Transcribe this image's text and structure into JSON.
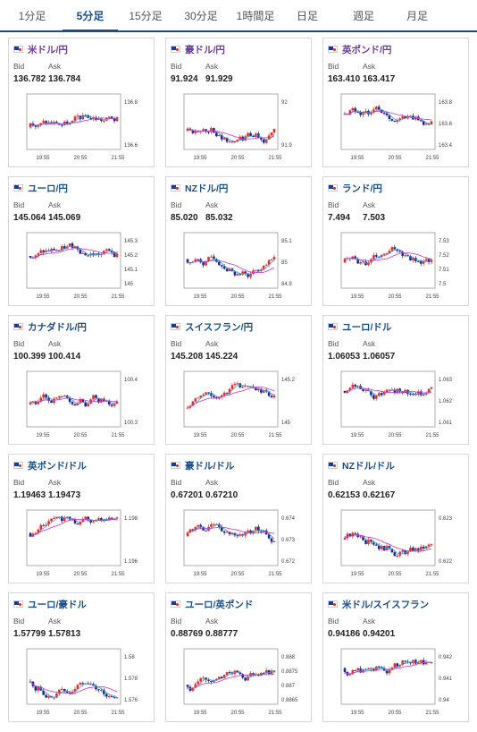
{
  "tabs": [
    {
      "label": "1分足",
      "active": false
    },
    {
      "label": "5分足",
      "active": true
    },
    {
      "label": "15分足",
      "active": false
    },
    {
      "label": "30分足",
      "active": false
    },
    {
      "label": "1時間足",
      "active": false
    },
    {
      "label": "日足",
      "active": false
    },
    {
      "label": "週足",
      "active": false
    },
    {
      "label": "月足",
      "active": false
    }
  ],
  "bid_label": "Bid",
  "ask_label": "Ask",
  "x_ticks": [
    "19:55",
    "20:55",
    "21:55"
  ],
  "colors": {
    "up": "#e0302a",
    "down": "#1b2a8a",
    "ma_short": "#3aa0d8",
    "ma_long": "#cc33cc",
    "frame": "#999999"
  },
  "cards": [
    {
      "pair": "米ドル/円",
      "flag": "us-jp-flag",
      "bid": "136.782",
      "ask": "136.784",
      "yticks": [
        "136.8",
        "136.6"
      ],
      "color": "purple"
    },
    {
      "pair": "豪ドル/円",
      "flag": "au-jp-flag",
      "bid": "91.924",
      "ask": "91.929",
      "yticks": [
        "92",
        "91.9"
      ],
      "color": "purple"
    },
    {
      "pair": "英ポンド/円",
      "flag": "gb-jp-flag",
      "bid": "163.410",
      "ask": "163.417",
      "yticks": [
        "163.8",
        "163.6",
        "163.4"
      ],
      "color": "purple"
    },
    {
      "pair": "ユーロ/円",
      "flag": "eu-jp-flag",
      "bid": "145.064",
      "ask": "145.069",
      "yticks": [
        "145.3",
        "145.2",
        "145.1",
        "145"
      ],
      "color": "blue"
    },
    {
      "pair": "NZドル/円",
      "flag": "nz-jp-flag",
      "bid": "85.020",
      "ask": "85.032",
      "yticks": [
        "85.1",
        "85",
        "84.9"
      ],
      "color": "blue"
    },
    {
      "pair": "ランド/円",
      "flag": "za-jp-flag",
      "bid": "7.494",
      "ask": "7.503",
      "yticks": [
        "7.53",
        "7.52",
        "7.51",
        "7.5"
      ],
      "color": "blue"
    },
    {
      "pair": "カナダドル/円",
      "flag": "ca-jp-flag",
      "bid": "100.399",
      "ask": "100.414",
      "yticks": [
        "100.4",
        "100.3"
      ],
      "color": "blue"
    },
    {
      "pair": "スイスフラン/円",
      "flag": "ch-jp-flag",
      "bid": "145.208",
      "ask": "145.224",
      "yticks": [
        "145.2",
        "145"
      ],
      "color": "blue"
    },
    {
      "pair": "ユーロ/ドル",
      "flag": "eu-us-flag",
      "bid": "1.06053",
      "ask": "1.06057",
      "yticks": [
        "1.063",
        "1.062",
        "1.061"
      ],
      "color": "blue"
    },
    {
      "pair": "英ポンド/ドル",
      "flag": "gb-us-flag",
      "bid": "1.19463",
      "ask": "1.19473",
      "yticks": [
        "1.198",
        "1.196"
      ],
      "color": "blue"
    },
    {
      "pair": "豪ドル/ドル",
      "flag": "au-us-flag",
      "bid": "0.67201",
      "ask": "0.67210",
      "yticks": [
        "0.674",
        "0.673",
        "0.672"
      ],
      "color": "blue"
    },
    {
      "pair": "NZドル/ドル",
      "flag": "nz-us-flag",
      "bid": "0.62153",
      "ask": "0.62167",
      "yticks": [
        "0.623",
        "0.622"
      ],
      "color": "blue"
    },
    {
      "pair": "ユーロ/豪ドル",
      "flag": "eu-au-flag",
      "bid": "1.57799",
      "ask": "1.57813",
      "yticks": [
        "1.58",
        "1.578",
        "1.576"
      ],
      "color": "blue"
    },
    {
      "pair": "ユーロ/英ポンド",
      "flag": "eu-gb-flag",
      "bid": "0.88769",
      "ask": "0.88777",
      "yticks": [
        "0.888",
        "0.8875",
        "0.887",
        "0.8865"
      ],
      "color": "blue"
    },
    {
      "pair": "米ドル/スイスフラン",
      "flag": "us-ch-flag",
      "bid": "0.94186",
      "ask": "0.94201",
      "yticks": [
        "0.942",
        "0.941",
        "0.94"
      ],
      "color": "blue"
    }
  ]
}
